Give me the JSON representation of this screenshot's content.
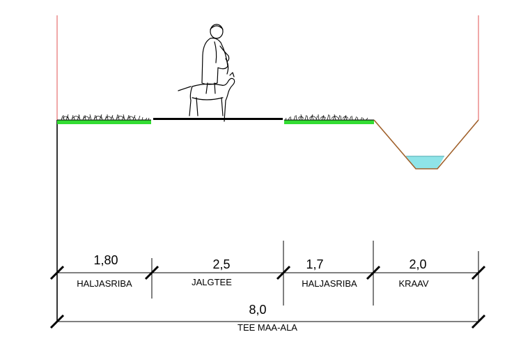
{
  "segments": [
    {
      "id": "haljasriba-left",
      "value": "1,80",
      "label": "HALJASRIBA"
    },
    {
      "id": "jalgtee",
      "value": "2,5",
      "label": "JALGTEE"
    },
    {
      "id": "haljasriba-right",
      "value": "1,7",
      "label": "HALJASRIBA"
    },
    {
      "id": "kraav",
      "value": "2,0",
      "label": "KRAAV"
    }
  ],
  "total": {
    "value": "8,0",
    "label": "TEE MAA-ALA"
  },
  "colors": {
    "grass": "#33dd33",
    "ditch_slope": "#a0602a",
    "water": "#8fe4e8",
    "boundary_line": "#e05050",
    "line": "#000000"
  },
  "icons": {
    "pedestrian": "person-walking-dog-icon",
    "grass": "grass-tuft-icon"
  }
}
